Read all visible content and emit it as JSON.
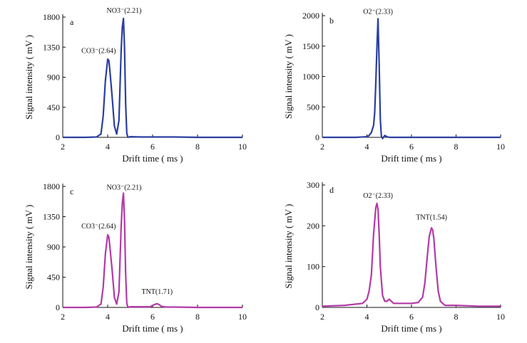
{
  "colors": {
    "blue": "#2b3fa0",
    "magenta": "#b33aa8",
    "axis": "#111111"
  },
  "chart_data": [
    {
      "type": "line",
      "panel_label": "a",
      "xlabel": "Drift  time ( ms )",
      "ylabel": "Signal  intensity ( mV )",
      "xlim": [
        2,
        10
      ],
      "ylim": [
        0,
        1800
      ],
      "xticks": [
        "2",
        "4",
        "6",
        "8",
        "10"
      ],
      "yticks": [
        "0",
        "450",
        "900",
        "1350",
        "1800"
      ],
      "color": "#2b3fa0",
      "series": [
        {
          "x": [
            2.0,
            3.0,
            3.5,
            3.7,
            3.8,
            3.9,
            4.0,
            4.05,
            4.1,
            4.2,
            4.3,
            4.4,
            4.5,
            4.6,
            4.65,
            4.7,
            4.75,
            4.8,
            4.85,
            4.9,
            5.0,
            5.5,
            6.0,
            7.0,
            8.0,
            9.0,
            10.0
          ],
          "y": [
            0,
            0,
            5,
            50,
            320,
            850,
            1170,
            1150,
            1000,
            600,
            170,
            50,
            250,
            1300,
            1650,
            1780,
            1350,
            500,
            60,
            0,
            10,
            5,
            5,
            5,
            0,
            0,
            0
          ]
        }
      ],
      "annotations": [
        {
          "text": "NO3⁻(2.21)",
          "x": 4.73,
          "y": 1800
        },
        {
          "text": "CO3⁻(2.64)",
          "x": 3.85,
          "y": 1200
        }
      ]
    },
    {
      "type": "line",
      "panel_label": "b",
      "xlabel": "Drift  time ( ms )",
      "ylabel": "Signal  intensity ( mV )",
      "xlim": [
        2,
        10
      ],
      "ylim": [
        0,
        2000
      ],
      "xticks": [
        "2",
        "4",
        "6",
        "8",
        "10"
      ],
      "yticks": [
        "0",
        "500",
        "1000",
        "1500",
        "2000"
      ],
      "color": "#2b3fa0",
      "series": [
        {
          "x": [
            2.0,
            3.5,
            4.0,
            4.1,
            4.2,
            4.3,
            4.35,
            4.4,
            4.45,
            4.5,
            4.55,
            4.6,
            4.65,
            4.7,
            4.8,
            4.9,
            5.0,
            6.0,
            8.0,
            10.0
          ],
          "y": [
            0,
            0,
            10,
            30,
            80,
            200,
            400,
            900,
            1500,
            1950,
            1200,
            300,
            20,
            -20,
            30,
            10,
            0,
            0,
            0,
            0
          ]
        }
      ],
      "annotations": [
        {
          "text": "O2⁻(2.33)",
          "x": 4.5,
          "y": 1960
        }
      ]
    },
    {
      "type": "line",
      "panel_label": "c",
      "xlabel": "Drift  time ( ms )",
      "ylabel": "Signal  intensity ( mV )",
      "xlim": [
        2,
        10
      ],
      "ylim": [
        0,
        1800
      ],
      "xticks": [
        "2",
        "4",
        "6",
        "8",
        "10"
      ],
      "yticks": [
        "0",
        "450",
        "900",
        "1350",
        "1800"
      ],
      "color": "#b33aa8",
      "series": [
        {
          "x": [
            2.0,
            3.0,
            3.5,
            3.7,
            3.8,
            3.9,
            4.0,
            4.05,
            4.1,
            4.2,
            4.3,
            4.4,
            4.5,
            4.6,
            4.65,
            4.7,
            4.75,
            4.8,
            4.85,
            4.9,
            5.0,
            5.5,
            5.9,
            6.0,
            6.1,
            6.2,
            6.3,
            6.4,
            6.6,
            7.0,
            8.0,
            9.0,
            10.0
          ],
          "y": [
            0,
            0,
            5,
            50,
            300,
            800,
            1080,
            1050,
            900,
            550,
            150,
            50,
            230,
            1200,
            1550,
            1700,
            1300,
            500,
            60,
            0,
            10,
            10,
            10,
            30,
            45,
            55,
            40,
            15,
            5,
            5,
            0,
            0,
            0
          ]
        }
      ],
      "annotations": [
        {
          "text": "NO3⁻(2.21)",
          "x": 4.73,
          "y": 1690
        },
        {
          "text": "CO3⁻(2.64)",
          "x": 3.85,
          "y": 1110
        },
        {
          "text": "TNT(1.71)",
          "x": 6.2,
          "y": 140
        }
      ]
    },
    {
      "type": "line",
      "panel_label": "d",
      "xlabel": "Drift  time ( ms )",
      "ylabel": "Signal  intensity ( mV )",
      "xlim": [
        2,
        10
      ],
      "ylim": [
        0,
        300
      ],
      "xticks": [
        "2",
        "4",
        "6",
        "8",
        "10"
      ],
      "yticks": [
        "0",
        "100",
        "200",
        "300"
      ],
      "color": "#b33aa8",
      "series": [
        {
          "x": [
            2.0,
            3.0,
            3.8,
            4.0,
            4.1,
            4.2,
            4.3,
            4.4,
            4.45,
            4.5,
            4.55,
            4.6,
            4.7,
            4.8,
            4.9,
            5.0,
            5.1,
            5.2,
            5.5,
            6.0,
            6.3,
            6.5,
            6.6,
            6.7,
            6.8,
            6.9,
            6.95,
            7.0,
            7.1,
            7.2,
            7.3,
            7.5,
            8.0,
            9.0,
            10.0
          ],
          "y": [
            3,
            5,
            10,
            20,
            40,
            80,
            180,
            245,
            255,
            240,
            180,
            100,
            30,
            15,
            15,
            20,
            15,
            10,
            10,
            10,
            12,
            25,
            60,
            120,
            175,
            195,
            190,
            170,
            100,
            40,
            15,
            5,
            5,
            3,
            3
          ]
        }
      ],
      "annotations": [
        {
          "text": "O2⁻(2.33)",
          "x": 4.5,
          "y": 258
        },
        {
          "text": "TNT(1.54)",
          "x": 6.9,
          "y": 205
        }
      ]
    }
  ]
}
